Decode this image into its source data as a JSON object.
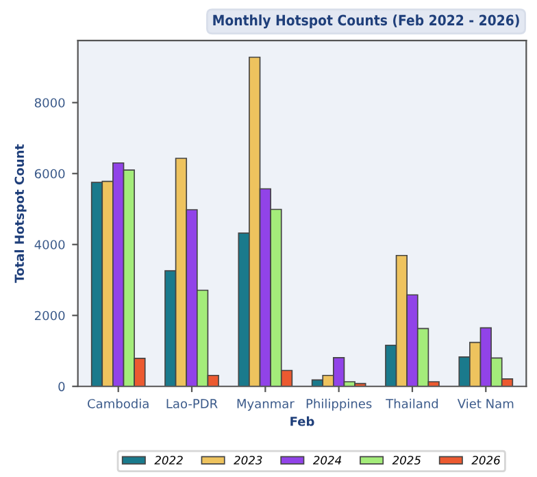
{
  "chart_data": {
    "type": "bar",
    "title": "Monthly Hotspot Counts (Feb 2022 - 2026)",
    "xlabel": "Feb",
    "ylabel": "Total Hotspot Count",
    "categories": [
      "Cambodia",
      "Lao-PDR",
      "Myanmar",
      "Philippines",
      "Thailand",
      "Viet Nam"
    ],
    "series": [
      {
        "name": "2022",
        "color": "#1a7a8c",
        "values": [
          5750,
          3260,
          4320,
          180,
          1160,
          830
        ]
      },
      {
        "name": "2023",
        "color": "#eec35e",
        "values": [
          5780,
          6430,
          9280,
          310,
          3690,
          1240
        ]
      },
      {
        "name": "2024",
        "color": "#9143e8",
        "values": [
          6300,
          4980,
          5570,
          810,
          2580,
          1650
        ]
      },
      {
        "name": "2025",
        "color": "#a4ec7a",
        "values": [
          6100,
          2710,
          4990,
          130,
          1630,
          800
        ]
      },
      {
        "name": "2026",
        "color": "#ec5a30",
        "values": [
          790,
          310,
          450,
          80,
          130,
          210
        ]
      }
    ],
    "ylim": [
      0,
      9750
    ],
    "yticks": [
      0,
      2000,
      4000,
      6000,
      8000
    ],
    "grid": false,
    "legend": "bottom"
  }
}
